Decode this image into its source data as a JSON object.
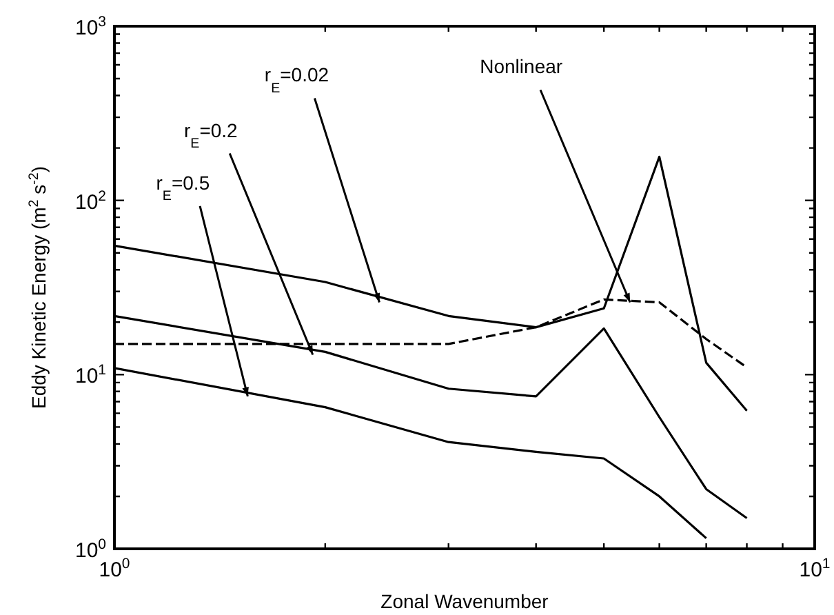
{
  "chart_data": {
    "type": "line",
    "xlabel": "Zonal Wavenumber",
    "ylabel": "Eddy Kinetic Energy (m$^{2}$ s$^{-2}$)",
    "log": "xy",
    "grid": false,
    "legend": false,
    "marker": "none",
    "x": [
      1,
      2,
      3,
      4,
      5,
      6,
      7,
      8
    ],
    "xlim": [
      1,
      10
    ],
    "ylim": [
      1,
      1000
    ],
    "xticks": [
      {
        "value": 1,
        "label": "10$^{0}$"
      },
      {
        "value": 2,
        "label": null
      },
      {
        "value": 3,
        "label": null
      },
      {
        "value": 4,
        "label": null
      },
      {
        "value": 5,
        "label": null
      },
      {
        "value": 6,
        "label": null
      },
      {
        "value": 7,
        "label": null
      },
      {
        "value": 8,
        "label": null
      },
      {
        "value": 9,
        "label": null
      },
      {
        "value": 10,
        "label": "10$^{1}$"
      }
    ],
    "yticks": [
      {
        "value": 1,
        "label": "10$^{0}$"
      },
      {
        "value": 2,
        "label": null
      },
      {
        "value": 3,
        "label": null
      },
      {
        "value": 4,
        "label": null
      },
      {
        "value": 5,
        "label": null
      },
      {
        "value": 6,
        "label": null
      },
      {
        "value": 7,
        "label": null
      },
      {
        "value": 8,
        "label": null
      },
      {
        "value": 9,
        "label": null
      },
      {
        "value": 10,
        "label": "10$^{1}$"
      },
      {
        "value": 20,
        "label": null
      },
      {
        "value": 30,
        "label": null
      },
      {
        "value": 40,
        "label": null
      },
      {
        "value": 50,
        "label": null
      },
      {
        "value": 60,
        "label": null
      },
      {
        "value": 70,
        "label": null
      },
      {
        "value": 80,
        "label": null
      },
      {
        "value": 90,
        "label": null
      },
      {
        "value": 100,
        "label": "10$^{2}$"
      },
      {
        "value": 200,
        "label": null
      },
      {
        "value": 300,
        "label": null
      },
      {
        "value": 400,
        "label": null
      },
      {
        "value": 500,
        "label": null
      },
      {
        "value": 600,
        "label": null
      },
      {
        "value": 700,
        "label": null
      },
      {
        "value": 800,
        "label": null
      },
      {
        "value": 900,
        "label": null
      },
      {
        "value": 1000,
        "label": "10$^{3}$"
      }
    ],
    "series": [
      {
        "color": "#000000",
        "values": [
          55,
          34,
          21.7,
          18.7,
          24,
          178,
          11.7,
          6.2
        ]
      },
      {
        "color": "#000000",
        "values": [
          21.7,
          13.5,
          8.3,
          7.5,
          18.4,
          5.7,
          2.2,
          1.5
        ]
      },
      {
        "color": "#000000",
        "values": [
          10.9,
          6.5,
          4.1,
          3.6,
          3.3,
          2.0,
          1.15,
          null
        ]
      },
      {
        "color": "#000000",
        "line_style": "dashed",
        "values": [
          15,
          15,
          15,
          18.7,
          27,
          26,
          16,
          11
        ]
      }
    ],
    "annotations": [
      {
        "text": "r$_{E}$=0.02",
        "x": 2.39,
        "y": 26
      },
      {
        "text": "r$_{E}$=0.2",
        "x": 1.92,
        "y": 13
      },
      {
        "text": "r$_{E}$=0.5",
        "x": 1.55,
        "y": 7.5
      },
      {
        "text": "Nonlinear",
        "x": 5.45,
        "y": 26
      }
    ]
  }
}
